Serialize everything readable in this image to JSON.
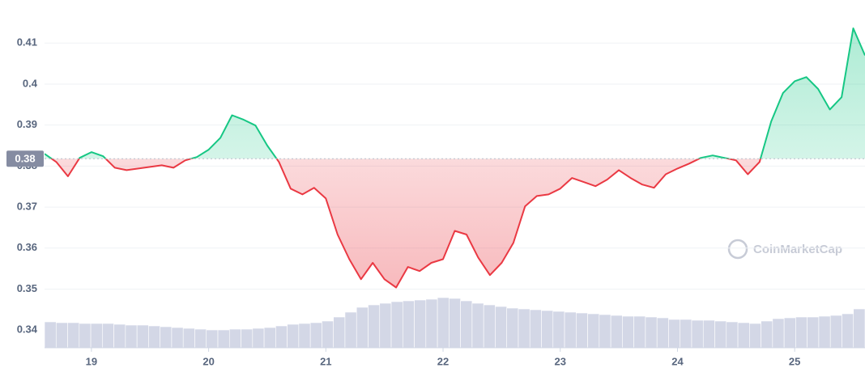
{
  "chart_data": {
    "type": "line",
    "x": [
      18.6,
      18.7,
      18.8,
      18.9,
      19.0,
      19.1,
      19.2,
      19.3,
      19.4,
      19.5,
      19.6,
      19.7,
      19.8,
      19.9,
      20.0,
      20.1,
      20.2,
      20.3,
      20.4,
      20.5,
      20.6,
      20.7,
      20.8,
      20.9,
      21.0,
      21.1,
      21.2,
      21.3,
      21.4,
      21.5,
      21.6,
      21.7,
      21.8,
      21.9,
      22.0,
      22.1,
      22.2,
      22.3,
      22.4,
      22.5,
      22.6,
      22.7,
      22.8,
      22.9,
      23.0,
      23.1,
      23.2,
      23.3,
      23.4,
      23.5,
      23.6,
      23.7,
      23.8,
      23.9,
      24.0,
      24.1,
      24.2,
      24.3,
      24.4,
      24.5,
      24.6,
      24.7,
      24.8,
      24.9,
      25.0,
      25.1,
      25.2,
      25.3,
      25.4,
      25.5,
      25.6
    ],
    "values": [
      0.383,
      0.381,
      0.3775,
      0.382,
      0.3834,
      0.3824,
      0.3796,
      0.379,
      0.3794,
      0.3798,
      0.3802,
      0.3796,
      0.3814,
      0.3822,
      0.384,
      0.3869,
      0.3924,
      0.3913,
      0.3899,
      0.385,
      0.381,
      0.3745,
      0.3731,
      0.3747,
      0.3721,
      0.3633,
      0.3573,
      0.3524,
      0.3564,
      0.3524,
      0.3504,
      0.3554,
      0.3544,
      0.3564,
      0.3573,
      0.3642,
      0.3633,
      0.3577,
      0.3534,
      0.3564,
      0.3613,
      0.3702,
      0.3727,
      0.3731,
      0.3745,
      0.3771,
      0.3761,
      0.3751,
      0.3767,
      0.379,
      0.3771,
      0.3755,
      0.3747,
      0.378,
      0.3794,
      0.3806,
      0.382,
      0.3826,
      0.382,
      0.3814,
      0.378,
      0.381,
      0.3909,
      0.3978,
      0.4007,
      0.4017,
      0.3988,
      0.3938,
      0.3968,
      0.4136,
      0.407
    ],
    "volume": [
      32,
      31,
      31,
      30,
      30,
      30,
      29,
      28,
      28,
      27,
      26,
      25,
      24,
      23,
      22,
      22,
      23,
      23,
      24,
      25,
      27,
      29,
      30,
      31,
      33,
      38,
      44,
      50,
      53,
      55,
      57,
      58,
      59,
      60,
      62,
      61,
      58,
      55,
      53,
      51,
      49,
      48,
      47,
      46,
      45,
      44,
      43,
      42,
      41,
      40,
      39,
      39,
      38,
      37,
      35,
      35,
      34,
      34,
      33,
      32,
      31,
      30,
      33,
      36,
      37,
      38,
      38,
      39,
      40,
      42,
      48
    ],
    "colors": {
      "above": "#16c784",
      "below": "#ea3943",
      "volume": "#d3d7e6"
    },
    "baseline": {
      "value": 0.3818,
      "label": "0.38"
    },
    "xlim": [
      18.6,
      25.6
    ],
    "xticks": [
      19,
      20,
      21,
      22,
      23,
      24,
      25
    ],
    "ylim": [
      0.3357,
      0.4205
    ],
    "yticks": [
      0.34,
      0.35,
      0.36,
      0.37,
      0.38,
      0.39,
      0.4,
      0.41
    ],
    "grid": true,
    "watermark": "CoinMarketCap"
  }
}
